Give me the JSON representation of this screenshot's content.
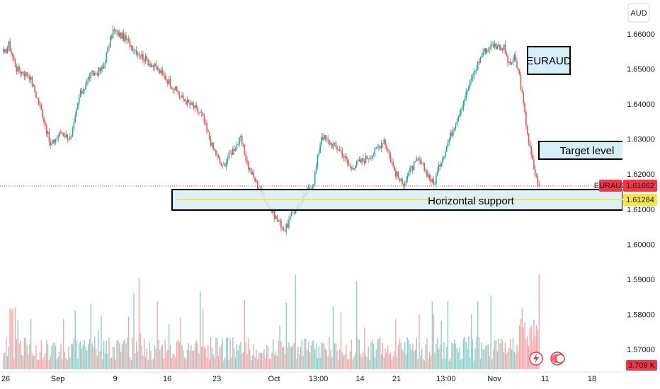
{
  "chart_data": {
    "type": "candlestick",
    "symbol": "EURAUD",
    "currency": "AUD",
    "colors": {
      "up": "#26a69a",
      "down": "#ef5350",
      "support_fill": "#d6eef6",
      "support_line": "#f5e642",
      "price_badge": "#f23645",
      "support_badge": "#f5e642",
      "volume_up": "#8cd1c9",
      "volume_down": "#f7a7a7"
    },
    "y_axis": {
      "min": 1.56,
      "max": 1.666,
      "ticks": [
        "1.66000",
        "1.65000",
        "1.64000",
        "1.63000",
        "1.62000",
        "1.61000",
        "1.60000",
        "1.59000",
        "1.58000",
        "1.57000"
      ],
      "tick_values": [
        1.66,
        1.65,
        1.64,
        1.63,
        1.62,
        1.61,
        1.6,
        1.59,
        1.58,
        1.57
      ]
    },
    "x_axis": {
      "labels": [
        "26",
        "Sep",
        "9",
        "16",
        "23",
        "Oct",
        "13:00",
        "14",
        "21",
        "13:00",
        "Nov",
        "11",
        "18"
      ],
      "label_index": [
        0,
        40,
        84,
        124,
        162,
        206,
        240,
        272,
        300,
        338,
        375,
        414,
        450
      ]
    },
    "last_price": {
      "label": "EURAUD",
      "value": "1.61662",
      "y": 1.61662
    },
    "support_price": {
      "value": "1.61284",
      "y": 1.61284
    },
    "volume_badge": "3.709 K",
    "key_points": [
      {
        "i": 0,
        "p": 1.654
      },
      {
        "i": 4,
        "p": 1.657
      },
      {
        "i": 10,
        "p": 1.65
      },
      {
        "i": 20,
        "p": 1.648
      },
      {
        "i": 30,
        "p": 1.637
      },
      {
        "i": 36,
        "p": 1.628
      },
      {
        "i": 44,
        "p": 1.632
      },
      {
        "i": 52,
        "p": 1.63
      },
      {
        "i": 58,
        "p": 1.642
      },
      {
        "i": 66,
        "p": 1.648
      },
      {
        "i": 76,
        "p": 1.65
      },
      {
        "i": 84,
        "p": 1.661
      },
      {
        "i": 92,
        "p": 1.659
      },
      {
        "i": 100,
        "p": 1.656
      },
      {
        "i": 108,
        "p": 1.653
      },
      {
        "i": 118,
        "p": 1.65
      },
      {
        "i": 128,
        "p": 1.646
      },
      {
        "i": 136,
        "p": 1.642
      },
      {
        "i": 146,
        "p": 1.639
      },
      {
        "i": 152,
        "p": 1.637
      },
      {
        "i": 160,
        "p": 1.628
      },
      {
        "i": 168,
        "p": 1.622
      },
      {
        "i": 176,
        "p": 1.627
      },
      {
        "i": 182,
        "p": 1.63
      },
      {
        "i": 188,
        "p": 1.622
      },
      {
        "i": 196,
        "p": 1.616
      },
      {
        "i": 202,
        "p": 1.612
      },
      {
        "i": 210,
        "p": 1.607
      },
      {
        "i": 216,
        "p": 1.604
      },
      {
        "i": 222,
        "p": 1.609
      },
      {
        "i": 230,
        "p": 1.613
      },
      {
        "i": 238,
        "p": 1.618
      },
      {
        "i": 244,
        "p": 1.631
      },
      {
        "i": 250,
        "p": 1.629
      },
      {
        "i": 258,
        "p": 1.627
      },
      {
        "i": 266,
        "p": 1.622
      },
      {
        "i": 276,
        "p": 1.624
      },
      {
        "i": 284,
        "p": 1.626
      },
      {
        "i": 292,
        "p": 1.63
      },
      {
        "i": 300,
        "p": 1.621
      },
      {
        "i": 306,
        "p": 1.617
      },
      {
        "i": 312,
        "p": 1.621
      },
      {
        "i": 318,
        "p": 1.624
      },
      {
        "i": 324,
        "p": 1.621
      },
      {
        "i": 330,
        "p": 1.617
      },
      {
        "i": 336,
        "p": 1.624
      },
      {
        "i": 344,
        "p": 1.632
      },
      {
        "i": 352,
        "p": 1.64
      },
      {
        "i": 360,
        "p": 1.648
      },
      {
        "i": 368,
        "p": 1.655
      },
      {
        "i": 376,
        "p": 1.657
      },
      {
        "i": 384,
        "p": 1.656
      },
      {
        "i": 388,
        "p": 1.651
      },
      {
        "i": 392,
        "p": 1.653
      },
      {
        "i": 396,
        "p": 1.648
      },
      {
        "i": 400,
        "p": 1.637
      },
      {
        "i": 404,
        "p": 1.627
      },
      {
        "i": 408,
        "p": 1.62
      },
      {
        "i": 411,
        "p": 1.617
      }
    ]
  },
  "annotations": {
    "title_box": "EURAUD",
    "target_box": "Target level",
    "support_box": "Horizontal support"
  },
  "icons": [
    "lightning-icon",
    "dividends-icon"
  ]
}
